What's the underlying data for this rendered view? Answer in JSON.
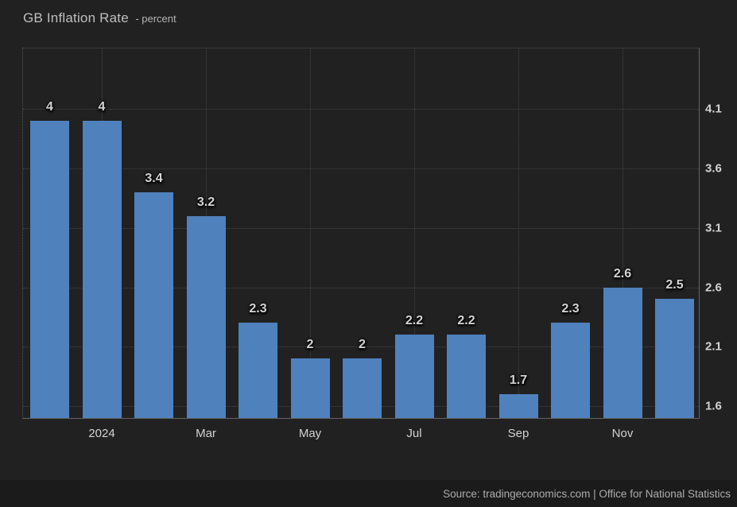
{
  "header": {
    "title": "GB Inflation Rate",
    "subtitle": "- percent"
  },
  "footer": {
    "source": "Source: tradingeconomics.com | Office for National Statistics"
  },
  "colors": {
    "bar": "#4f81bd",
    "background": "#212121",
    "label_text": "#d4d4d4",
    "source_text": "#adadad"
  },
  "chart_data": {
    "type": "bar",
    "title": "GB Inflation Rate",
    "ylabel": "percent",
    "xlabel": "",
    "values": [
      4,
      4,
      3.4,
      3.2,
      2.3,
      2,
      2,
      2.2,
      2.2,
      1.7,
      2.3,
      2.6,
      2.5
    ],
    "bar_labels": [
      "4",
      "4",
      "3.4",
      "3.2",
      "2.3",
      "2",
      "2",
      "2.2",
      "2.2",
      "1.7",
      "2.3",
      "2.6",
      "2.5"
    ],
    "x_ticks": [
      {
        "index": 1,
        "label": "2024"
      },
      {
        "index": 3,
        "label": "Mar"
      },
      {
        "index": 5,
        "label": "May"
      },
      {
        "index": 7,
        "label": "Jul"
      },
      {
        "index": 9,
        "label": "Sep"
      },
      {
        "index": 11,
        "label": "Nov"
      }
    ],
    "y_ticks": [
      4.1,
      3.6,
      3.1,
      2.6,
      2.1,
      1.6
    ],
    "ylim": [
      1.5,
      4.61
    ],
    "grid": "dotted",
    "legend_position": "none",
    "y_axis_position": "right",
    "bar_color": "#4f81bd"
  }
}
